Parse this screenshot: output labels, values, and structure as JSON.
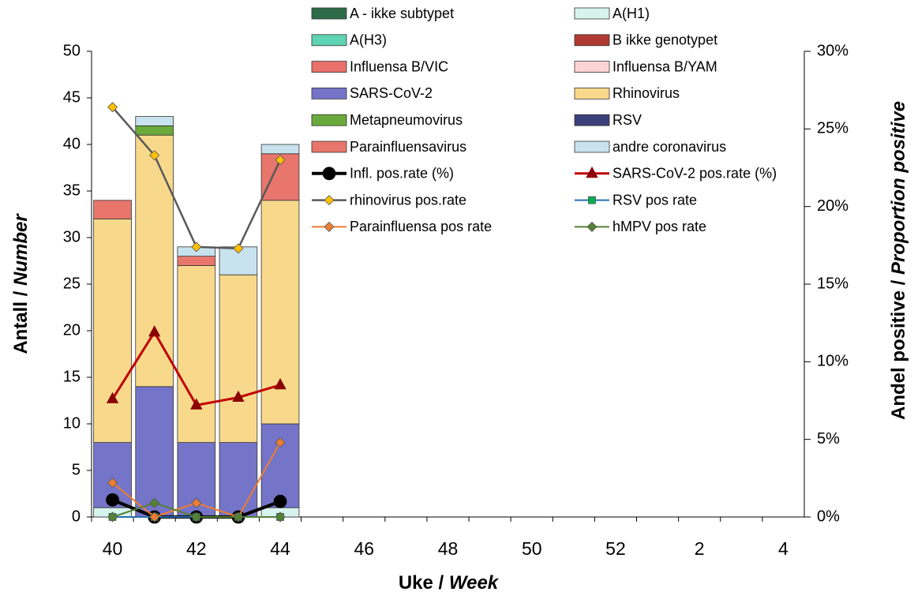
{
  "chart_data": {
    "type": "bar_line",
    "x_label": [
      "Uke / ",
      "Week"
    ],
    "y_label": [
      "Antall / ",
      "Number"
    ],
    "y2_label": [
      "Andel positive / ",
      "Proportion  positive"
    ],
    "categories": [
      40,
      null,
      42,
      null,
      44,
      null,
      46,
      null,
      48,
      null,
      50,
      null,
      52,
      null,
      2,
      null,
      4
    ],
    "ylim": [
      0,
      50
    ],
    "yticks": [
      0,
      5,
      10,
      15,
      20,
      25,
      30,
      35,
      40,
      45,
      50
    ],
    "y2lim": [
      0,
      30
    ],
    "y2ticks": [
      {
        "value": 0,
        "label": "0%"
      },
      {
        "value": 5,
        "label": "5%"
      },
      {
        "value": 10,
        "label": "10%"
      },
      {
        "value": 15,
        "label": "15%"
      },
      {
        "value": 20,
        "label": "20%"
      },
      {
        "value": 25,
        "label": "25%"
      },
      {
        "value": 30,
        "label": "30%"
      }
    ],
    "series": [
      {
        "name": "A - ikke subtypet",
        "type": "bar",
        "color": "#2e6b47",
        "values": [
          0,
          0,
          0,
          0,
          0,
          null,
          null,
          null,
          null,
          null,
          null,
          null,
          null,
          null,
          null,
          null,
          null
        ]
      },
      {
        "name": "A(H1)",
        "type": "bar",
        "color": "#d7f3ee",
        "values": [
          1,
          0,
          0,
          0,
          1,
          null,
          null,
          null,
          null,
          null,
          null,
          null,
          null,
          null,
          null,
          null,
          null
        ]
      },
      {
        "name": "A(H3)",
        "type": "bar",
        "color": "#5fd3b3",
        "values": [
          0,
          0,
          0,
          0,
          0,
          null,
          null,
          null,
          null,
          null,
          null,
          null,
          null,
          null,
          null,
          null,
          null
        ]
      },
      {
        "name": "B ikke genotypet",
        "type": "bar",
        "color": "#b03a33",
        "values": [
          0,
          0,
          0,
          0,
          0,
          null,
          null,
          null,
          null,
          null,
          null,
          null,
          null,
          null,
          null,
          null,
          null
        ]
      },
      {
        "name": "Influensa B/VIC",
        "type": "bar",
        "color": "#e8716b",
        "values": [
          0,
          0,
          0,
          0,
          0,
          null,
          null,
          null,
          null,
          null,
          null,
          null,
          null,
          null,
          null,
          null,
          null
        ]
      },
      {
        "name": "Influensa B/YAM",
        "type": "bar",
        "color": "#fcd5d3",
        "values": [
          0,
          0,
          0,
          0,
          0,
          null,
          null,
          null,
          null,
          null,
          null,
          null,
          null,
          null,
          null,
          null,
          null
        ]
      },
      {
        "name": "SARS-CoV-2",
        "type": "bar",
        "color": "#7474c8",
        "values": [
          7,
          14,
          8,
          8,
          9,
          null,
          null,
          null,
          null,
          null,
          null,
          null,
          null,
          null,
          null,
          null,
          null
        ]
      },
      {
        "name": "Rhinovirus",
        "type": "bar",
        "color": "#f8d98c",
        "values": [
          24,
          27,
          19,
          18,
          24,
          null,
          null,
          null,
          null,
          null,
          null,
          null,
          null,
          null,
          null,
          null,
          null
        ]
      },
      {
        "name": "Metapneumovirus",
        "type": "bar",
        "color": "#6aaa3c",
        "values": [
          0,
          1,
          0,
          0,
          0,
          null,
          null,
          null,
          null,
          null,
          null,
          null,
          null,
          null,
          null,
          null,
          null
        ]
      },
      {
        "name": "RSV",
        "type": "bar",
        "color": "#3b3f7a",
        "values": [
          0,
          0,
          0,
          0,
          0,
          null,
          null,
          null,
          null,
          null,
          null,
          null,
          null,
          null,
          null,
          null,
          null
        ]
      },
      {
        "name": "Parainfluensavirus",
        "type": "bar",
        "color": "#e8766c",
        "values": [
          2,
          0,
          1,
          0,
          5,
          null,
          null,
          null,
          null,
          null,
          null,
          null,
          null,
          null,
          null,
          null,
          null
        ]
      },
      {
        "name": "andre coronavirus",
        "type": "bar",
        "color": "#c8e2ee",
        "values": [
          0,
          1,
          1,
          3,
          1,
          null,
          null,
          null,
          null,
          null,
          null,
          null,
          null,
          null,
          null,
          null,
          null
        ]
      },
      {
        "name": "Infl. pos.rate (%)",
        "type": "line",
        "axis": "y2",
        "color": "#000000",
        "marker": "circle",
        "marker_color": "#000000",
        "width": 4,
        "values": [
          1.1,
          0,
          0,
          0,
          1.0,
          null,
          null,
          null,
          null,
          null,
          null,
          null,
          null,
          null,
          null,
          null,
          null
        ]
      },
      {
        "name": "SARS-CoV-2 pos.rate (%)",
        "type": "line",
        "axis": "y2",
        "color": "#c00000",
        "marker": "triangle",
        "marker_color": "#8b0000",
        "width": 3,
        "values": [
          7.6,
          11.9,
          7.2,
          7.7,
          8.5,
          null,
          null,
          null,
          null,
          null,
          null,
          null,
          null,
          null,
          null,
          null,
          null
        ]
      },
      {
        "name": "rhinovirus pos.rate",
        "type": "line",
        "axis": "y2",
        "color": "#595959",
        "marker": "diamond",
        "marker_color": "#ffc000",
        "width": 2.5,
        "values": [
          26.4,
          23.3,
          17.4,
          17.3,
          23.0,
          null,
          null,
          null,
          null,
          null,
          null,
          null,
          null,
          null,
          null,
          null,
          null
        ]
      },
      {
        "name": "RSV pos rate",
        "type": "line",
        "axis": "y2",
        "color": "#2a6fb0",
        "marker": "square",
        "marker_color": "#00b050",
        "width": 2,
        "values": [
          0,
          0,
          0,
          0,
          0,
          null,
          null,
          null,
          null,
          null,
          null,
          null,
          null,
          null,
          null,
          null,
          null
        ]
      },
      {
        "name": "Parainfluensa pos rate",
        "type": "line",
        "axis": "y2",
        "color": "#ed7d31",
        "marker": "diamond",
        "marker_color": "#ed7d31",
        "width": 2,
        "values": [
          2.2,
          0,
          0.9,
          0,
          4.8,
          null,
          null,
          null,
          null,
          null,
          null,
          null,
          null,
          null,
          null,
          null,
          null
        ]
      },
      {
        "name": "hMPV pos rate",
        "type": "line",
        "axis": "y2",
        "color": "#548235",
        "marker": "diamond",
        "marker_color": "#548235",
        "width": 2,
        "values": [
          0,
          0.9,
          0,
          0,
          0,
          null,
          null,
          null,
          null,
          null,
          null,
          null,
          null,
          null,
          null,
          null,
          null
        ]
      }
    ]
  }
}
